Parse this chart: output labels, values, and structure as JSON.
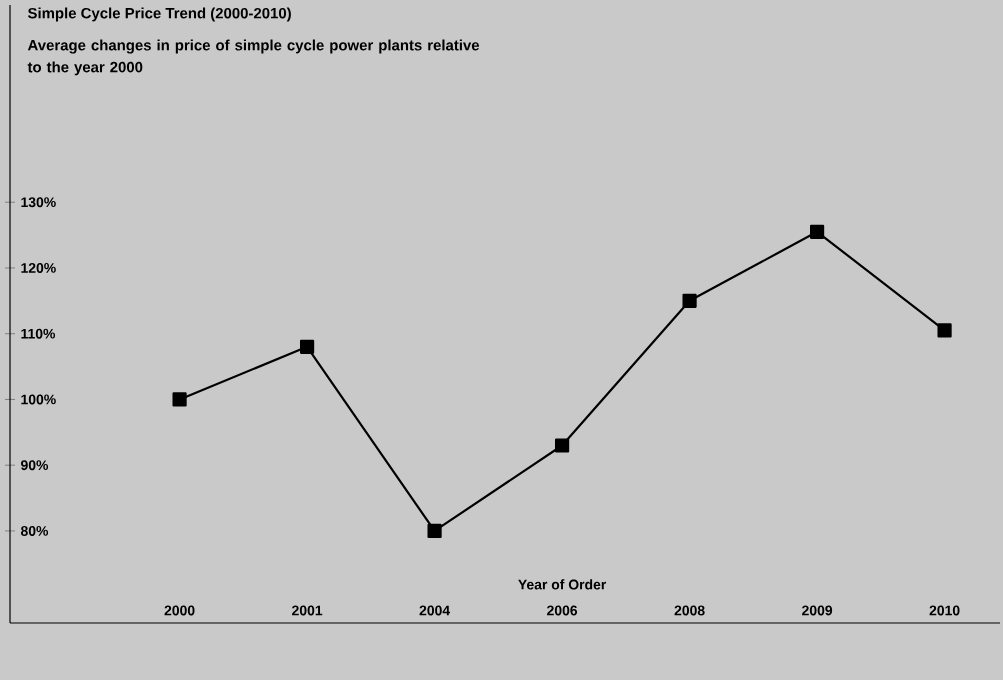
{
  "chart_data": {
    "type": "line",
    "title": "Simple Cycle Price Trend (2000-2010)",
    "subtitle": "Average changes in price of simple cycle power plants relative to the year 2000",
    "xlabel": "Year of Order",
    "categories": [
      "2000",
      "2001",
      "2004",
      "2006",
      "2008",
      "2009",
      "2010"
    ],
    "values": [
      100,
      108,
      80,
      93,
      115,
      125.5,
      110.5
    ],
    "color": "#000000",
    "marker": "square",
    "line_style": "solid",
    "grid": false,
    "ylim": [
      66,
      160
    ],
    "yticks": [
      {
        "value": 80,
        "label": "80%"
      },
      {
        "value": 90,
        "label": "90%"
      },
      {
        "value": 100,
        "label": "100%"
      },
      {
        "value": 110,
        "label": "110%"
      },
      {
        "value": 120,
        "label": "120%"
      },
      {
        "value": 130,
        "label": "130%"
      }
    ]
  }
}
